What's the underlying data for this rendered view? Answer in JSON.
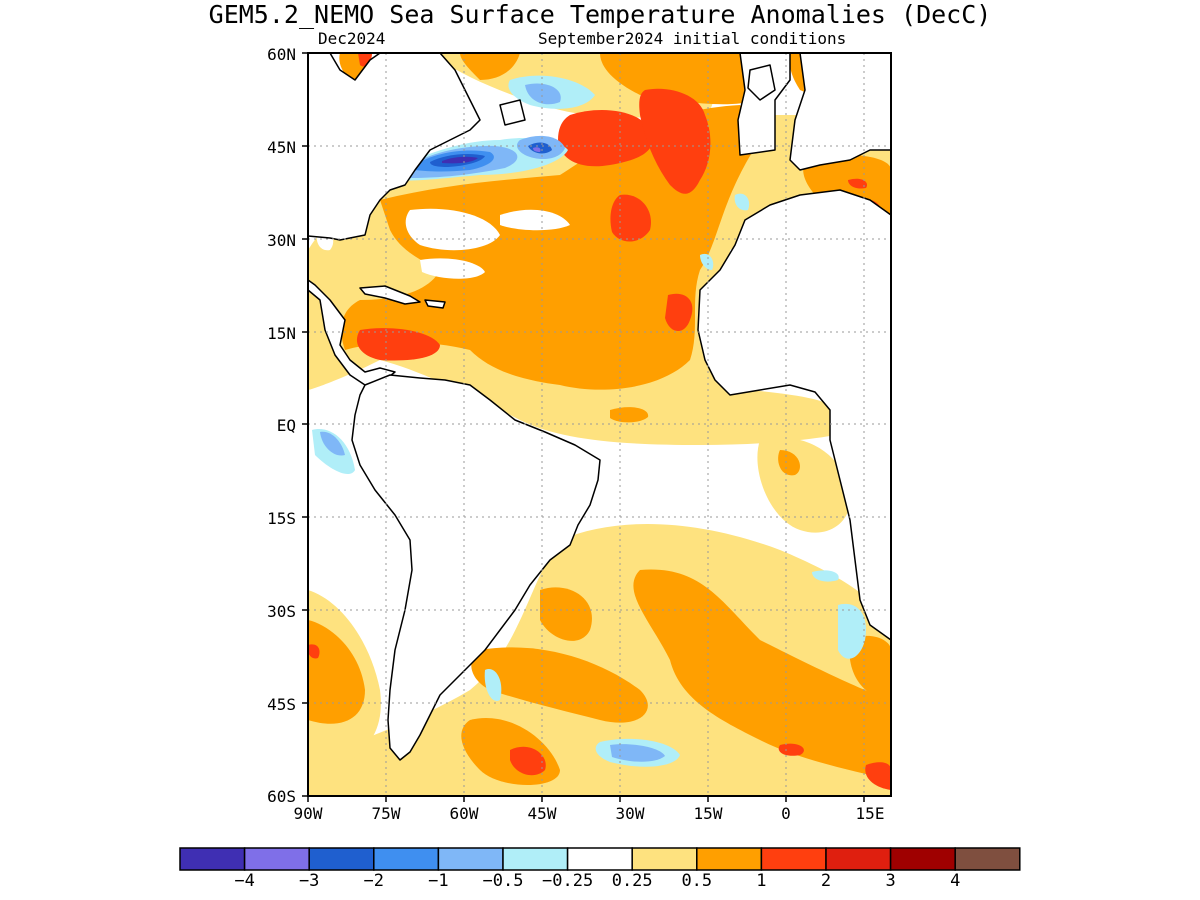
{
  "title": "GEM5.2_NEMO Sea Surface Temperature Anomalies (DecC)",
  "subtitle_left": "Dec2024",
  "subtitle_right": "September2024 initial conditions",
  "lat_ticks": [
    "60N",
    "45N",
    "30N",
    "15N",
    "EQ",
    "15S",
    "30S",
    "45S",
    "60S"
  ],
  "lon_ticks": [
    "90W",
    "75W",
    "60W",
    "45W",
    "30W",
    "15W",
    "0",
    "15E"
  ],
  "colorbar": {
    "colors": [
      "#3f2fb3",
      "#7f6fe8",
      "#1f5fcf",
      "#3f8ff0",
      "#7fb7f7",
      "#b0eef8",
      "#ffffff",
      "#fee27f",
      "#ff9f00",
      "#ff3f0f",
      "#df1f0f",
      "#9f0000",
      "#7f4f3f"
    ],
    "labels": [
      "−4",
      "−3",
      "−2",
      "−1",
      "−0.5",
      "−0.25",
      "0.25",
      "0.5",
      "1",
      "2",
      "3",
      "4"
    ]
  }
}
